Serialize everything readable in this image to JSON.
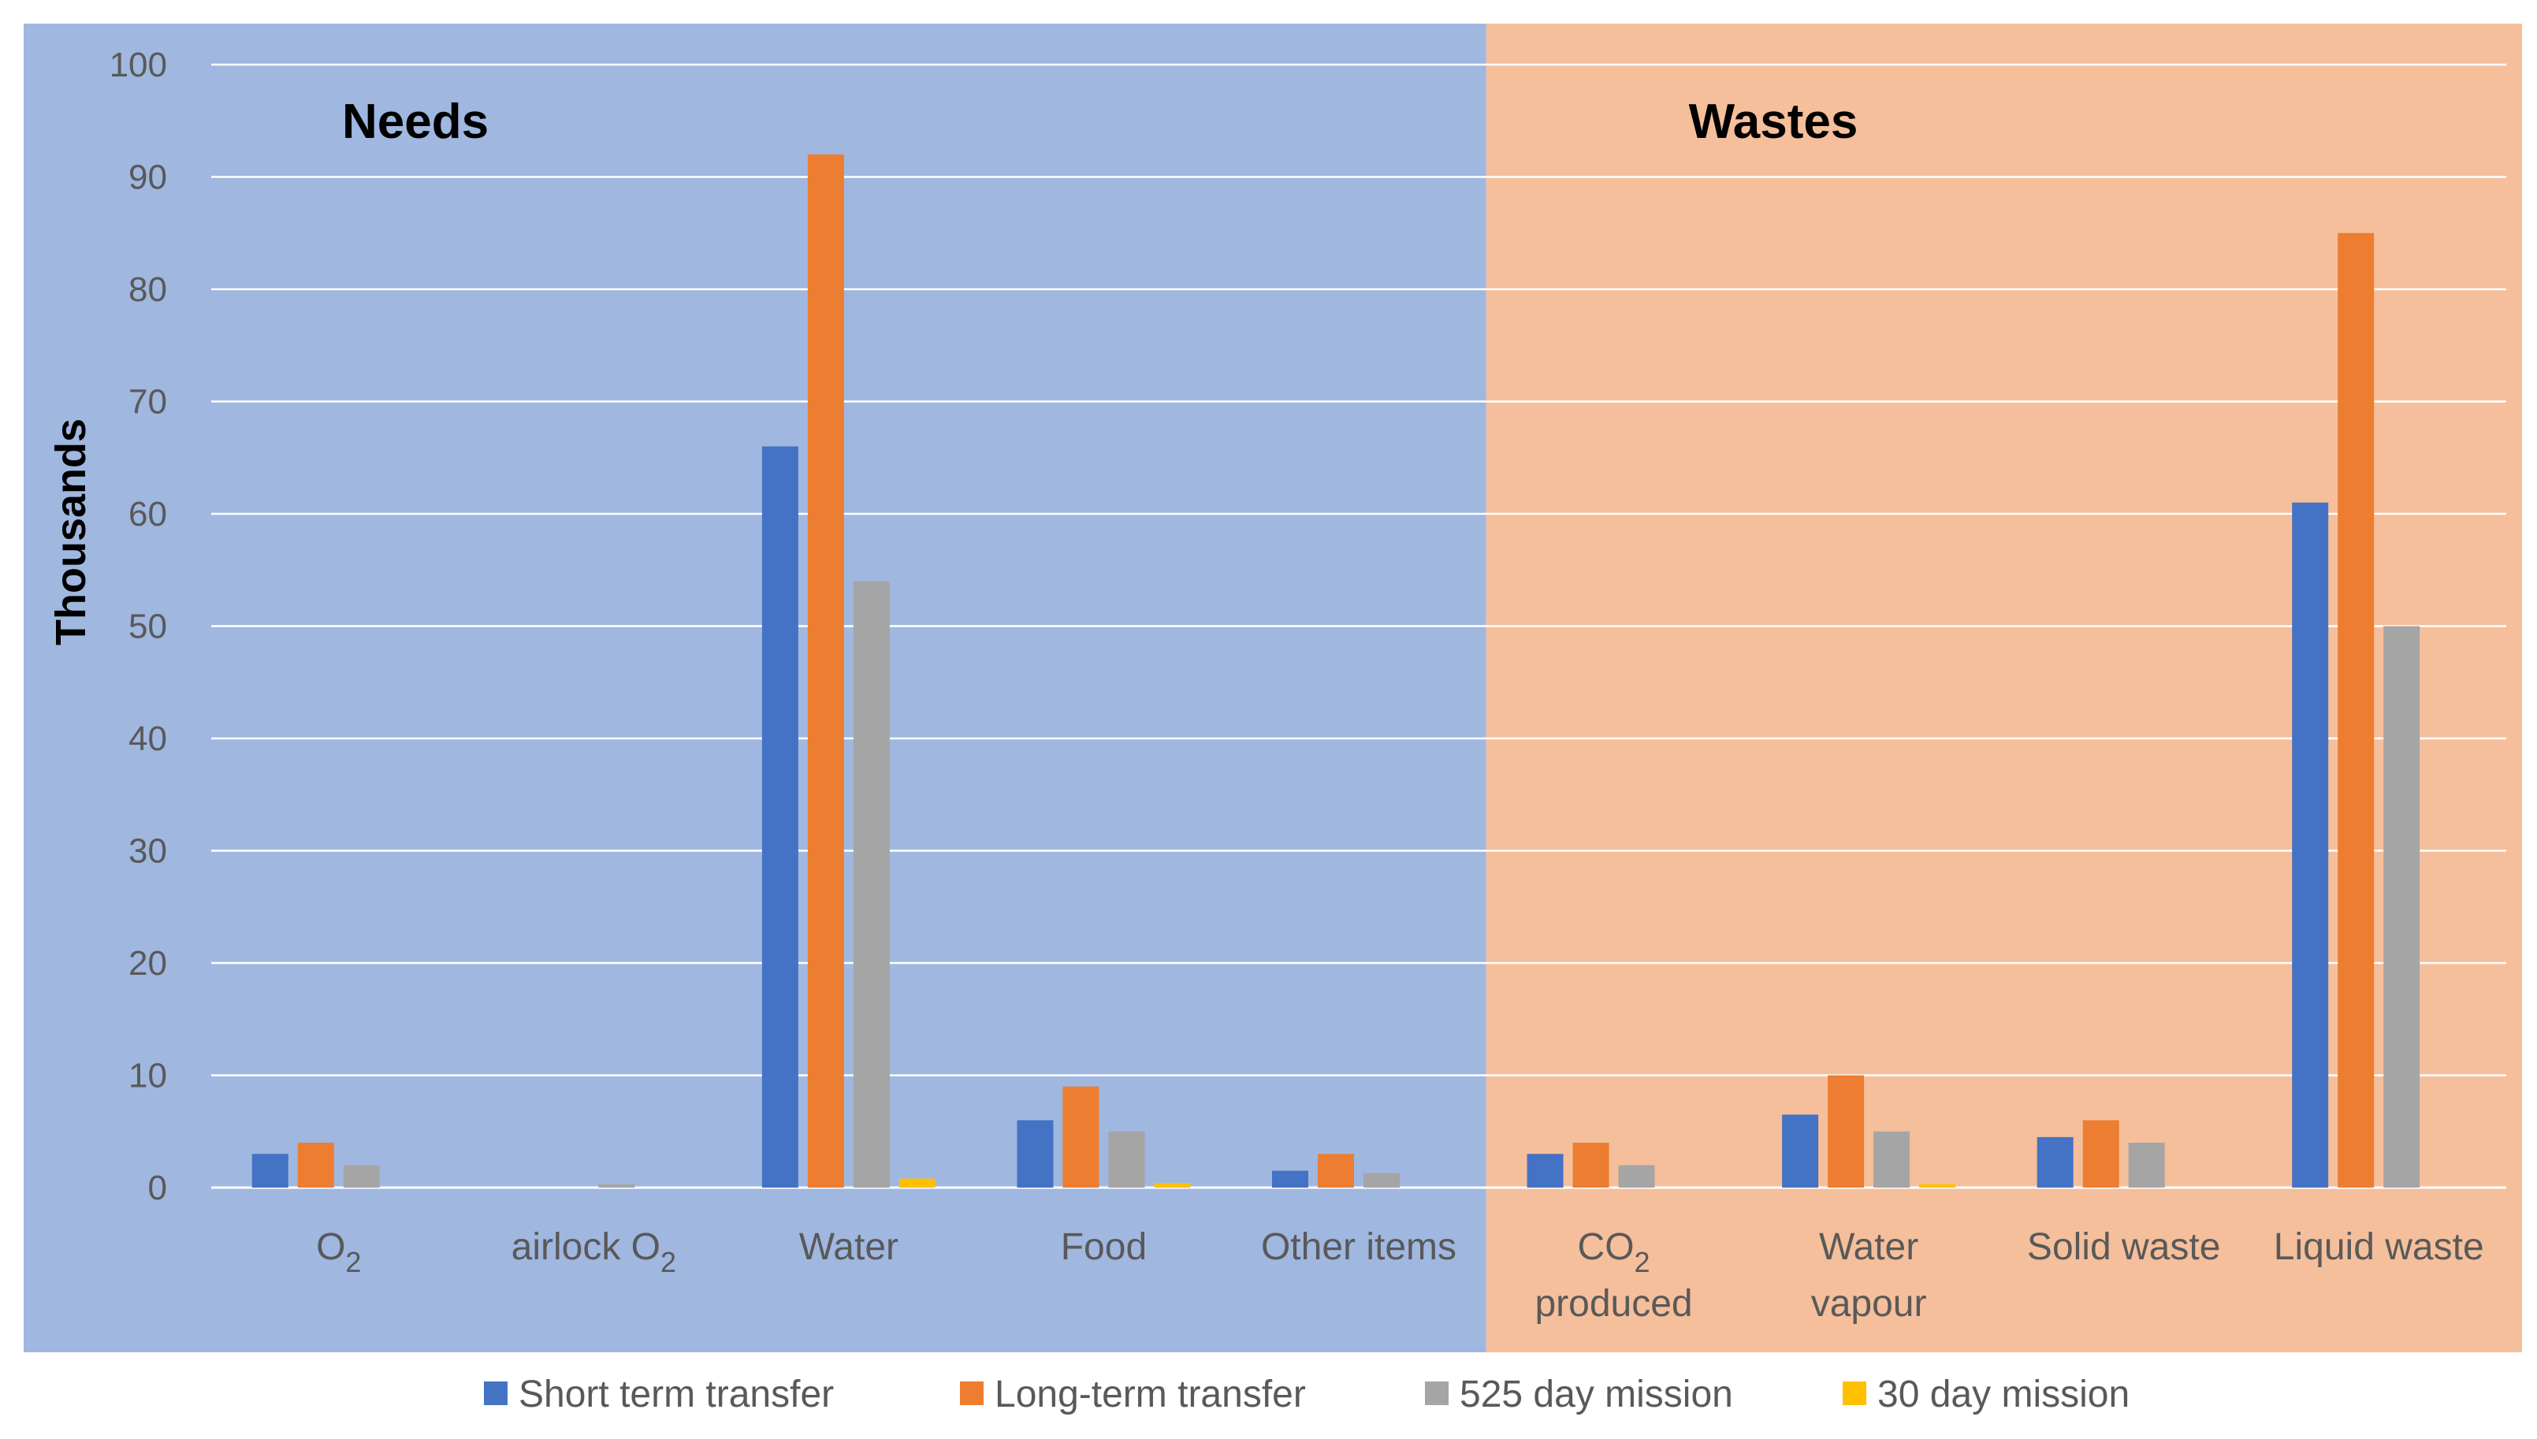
{
  "chart_data": {
    "type": "bar",
    "title": "",
    "ylabel": "Thousands",
    "xlabel": "",
    "ylim": [
      0,
      100
    ],
    "yticks": [
      0,
      10,
      20,
      30,
      40,
      50,
      60,
      70,
      80,
      90,
      100
    ],
    "grid": true,
    "legend_position": "bottom",
    "categories": [
      "O2",
      "airlock O2",
      "Water",
      "Food",
      "Other items",
      "CO2 produced",
      "Water vapour",
      "Solid waste",
      "Liquid waste"
    ],
    "category_labels": [
      {
        "main": "O",
        "sub": "2",
        "line2": ""
      },
      {
        "main": "airlock O",
        "sub": "2",
        "line2": ""
      },
      {
        "main": "Water",
        "sub": "",
        "line2": ""
      },
      {
        "main": "Food",
        "sub": "",
        "line2": ""
      },
      {
        "main": "Other items",
        "sub": "",
        "line2": ""
      },
      {
        "main": "CO",
        "sub": "2",
        "line2": "produced"
      },
      {
        "main": "Water",
        "sub": "",
        "line2": "vapour"
      },
      {
        "main": "Solid waste",
        "sub": "",
        "line2": ""
      },
      {
        "main": "Liquid waste",
        "sub": "",
        "line2": ""
      }
    ],
    "regions": [
      {
        "label": "Needs",
        "color": "#a0b7e0",
        "from_category": 0,
        "to_category": 4
      },
      {
        "label": "Wastes",
        "color": "#f5bf9c",
        "from_category": 5,
        "to_category": 8
      }
    ],
    "series": [
      {
        "name": "Short term transfer",
        "color": "#4472c4",
        "values": [
          3,
          0,
          66,
          6,
          1.5,
          3,
          6.5,
          4.5,
          61
        ]
      },
      {
        "name": "Long-term transfer",
        "color": "#ed7d31",
        "values": [
          4,
          0,
          92,
          9,
          3,
          4,
          10,
          6,
          85
        ]
      },
      {
        "name": "525 day mission",
        "color": "#a5a5a5",
        "values": [
          2,
          0.3,
          54,
          5,
          1.3,
          2,
          5,
          4,
          50
        ]
      },
      {
        "name": "30 day mission",
        "color": "#ffc000",
        "values": [
          0,
          0,
          0.8,
          0.4,
          0,
          0,
          0.3,
          0,
          0
        ]
      }
    ]
  }
}
